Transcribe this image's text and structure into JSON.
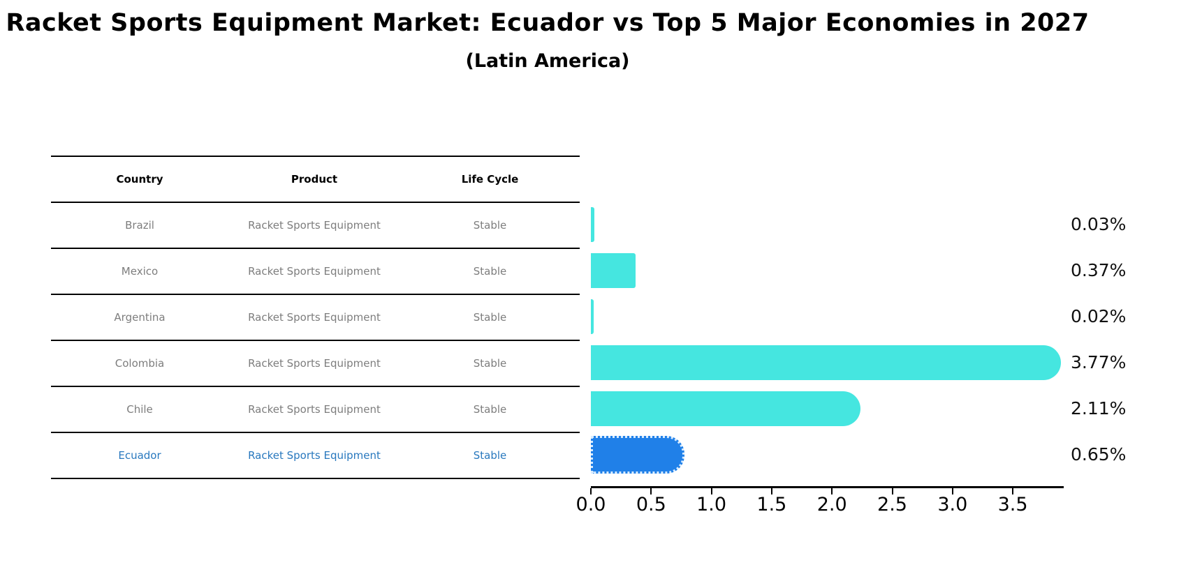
{
  "title": "Racket Sports Equipment Market: Ecuador vs Top 5 Major Economies in 2027",
  "subtitle": "(Latin America)",
  "table": {
    "headers": [
      "Country",
      "Product",
      "Life Cycle"
    ],
    "rows": [
      {
        "country": "Brazil",
        "product": "Racket Sports Equipment",
        "life_cycle": "Stable"
      },
      {
        "country": "Mexico",
        "product": "Racket Sports Equipment",
        "life_cycle": "Stable"
      },
      {
        "country": "Argentina",
        "product": "Racket Sports Equipment",
        "life_cycle": "Stable"
      },
      {
        "country": "Colombia",
        "product": "Racket Sports Equipment",
        "life_cycle": "Stable"
      },
      {
        "country": "Chile",
        "product": "Racket Sports Equipment",
        "life_cycle": "Stable"
      },
      {
        "country": "Ecuador",
        "product": "Racket Sports Equipment",
        "life_cycle": "Stable"
      }
    ]
  },
  "chart_data": {
    "type": "bar",
    "orientation": "horizontal",
    "categories": [
      "Brazil",
      "Mexico",
      "Argentina",
      "Colombia",
      "Chile",
      "Ecuador"
    ],
    "values": [
      0.03,
      0.37,
      0.02,
      3.77,
      2.11,
      0.65
    ],
    "value_labels": [
      "0.03%",
      "0.37%",
      "0.02%",
      "3.77%",
      "2.11%",
      "0.65%"
    ],
    "x_ticks": [
      "0.0",
      "0.5",
      "1.0",
      "1.5",
      "2.0",
      "2.5",
      "3.0",
      "3.5"
    ],
    "xlim": [
      0,
      3.92
    ],
    "grid": false,
    "legend": "none",
    "bar_color": "#45e6e0",
    "highlight_bar_color": "#2080e8",
    "highlight_text_color": "#2878be",
    "highlight_index": 5
  },
  "colors": {
    "text": "#000000",
    "muted_text": "#7d7d7d",
    "axis": "#000000"
  }
}
